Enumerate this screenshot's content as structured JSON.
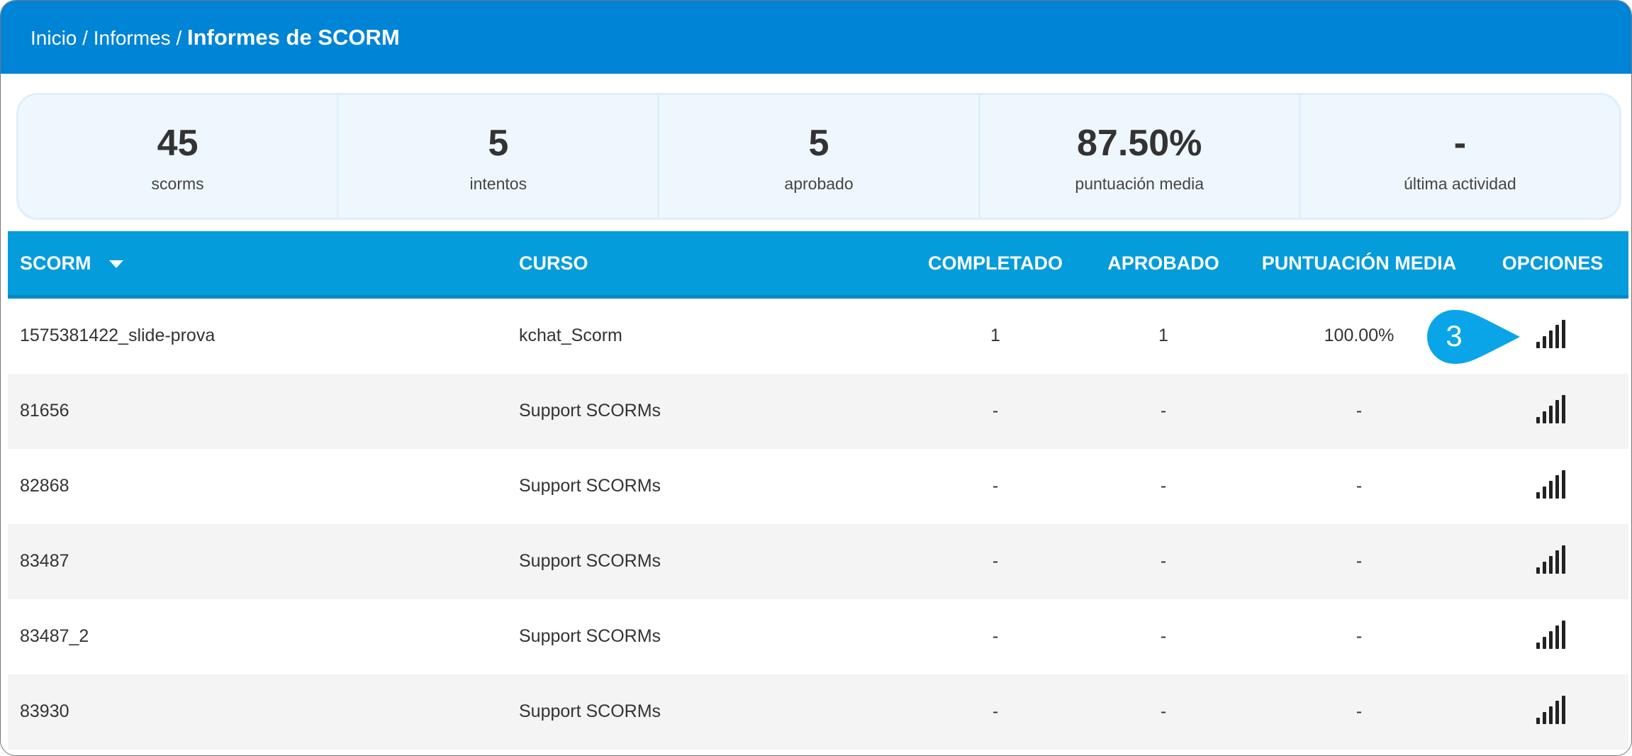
{
  "breadcrumb": {
    "items": [
      "Inicio",
      "Informes"
    ],
    "separator": "/",
    "current": "Informes de SCORM"
  },
  "stats": [
    {
      "value": "45",
      "label": "scorms"
    },
    {
      "value": "5",
      "label": "intentos"
    },
    {
      "value": "5",
      "label": "aprobado"
    },
    {
      "value": "87.50%",
      "label": "puntuación media"
    },
    {
      "value": "-",
      "label": "última actividad"
    }
  ],
  "table": {
    "columns": [
      "SCORM",
      "CURSO",
      "COMPLETADO",
      "APROBADO",
      "PUNTUACIÓN MEDIA",
      "OPCIONES"
    ],
    "sort_icon": "caret-down-icon",
    "rows": [
      {
        "scorm": "1575381422_slide-prova",
        "curso": "kchat_Scorm",
        "completado": "1",
        "aprobado": "1",
        "puntuacion": "100.00%"
      },
      {
        "scorm": "81656",
        "curso": "Support SCORMs",
        "completado": "-",
        "aprobado": "-",
        "puntuacion": "-"
      },
      {
        "scorm": "82868",
        "curso": "Support SCORMs",
        "completado": "-",
        "aprobado": "-",
        "puntuacion": "-"
      },
      {
        "scorm": "83487",
        "curso": "Support SCORMs",
        "completado": "-",
        "aprobado": "-",
        "puntuacion": "-"
      },
      {
        "scorm": "83487_2",
        "curso": "Support SCORMs",
        "completado": "-",
        "aprobado": "-",
        "puntuacion": "-"
      },
      {
        "scorm": "83930",
        "curso": "Support SCORMs",
        "completado": "-",
        "aprobado": "-",
        "puntuacion": "-"
      }
    ],
    "option_icon": "signal-bars-icon"
  },
  "callout": {
    "label": "3"
  },
  "colors": {
    "header": "#0084d6",
    "table_header": "#049cdb",
    "callout": "#0aa5e8"
  }
}
